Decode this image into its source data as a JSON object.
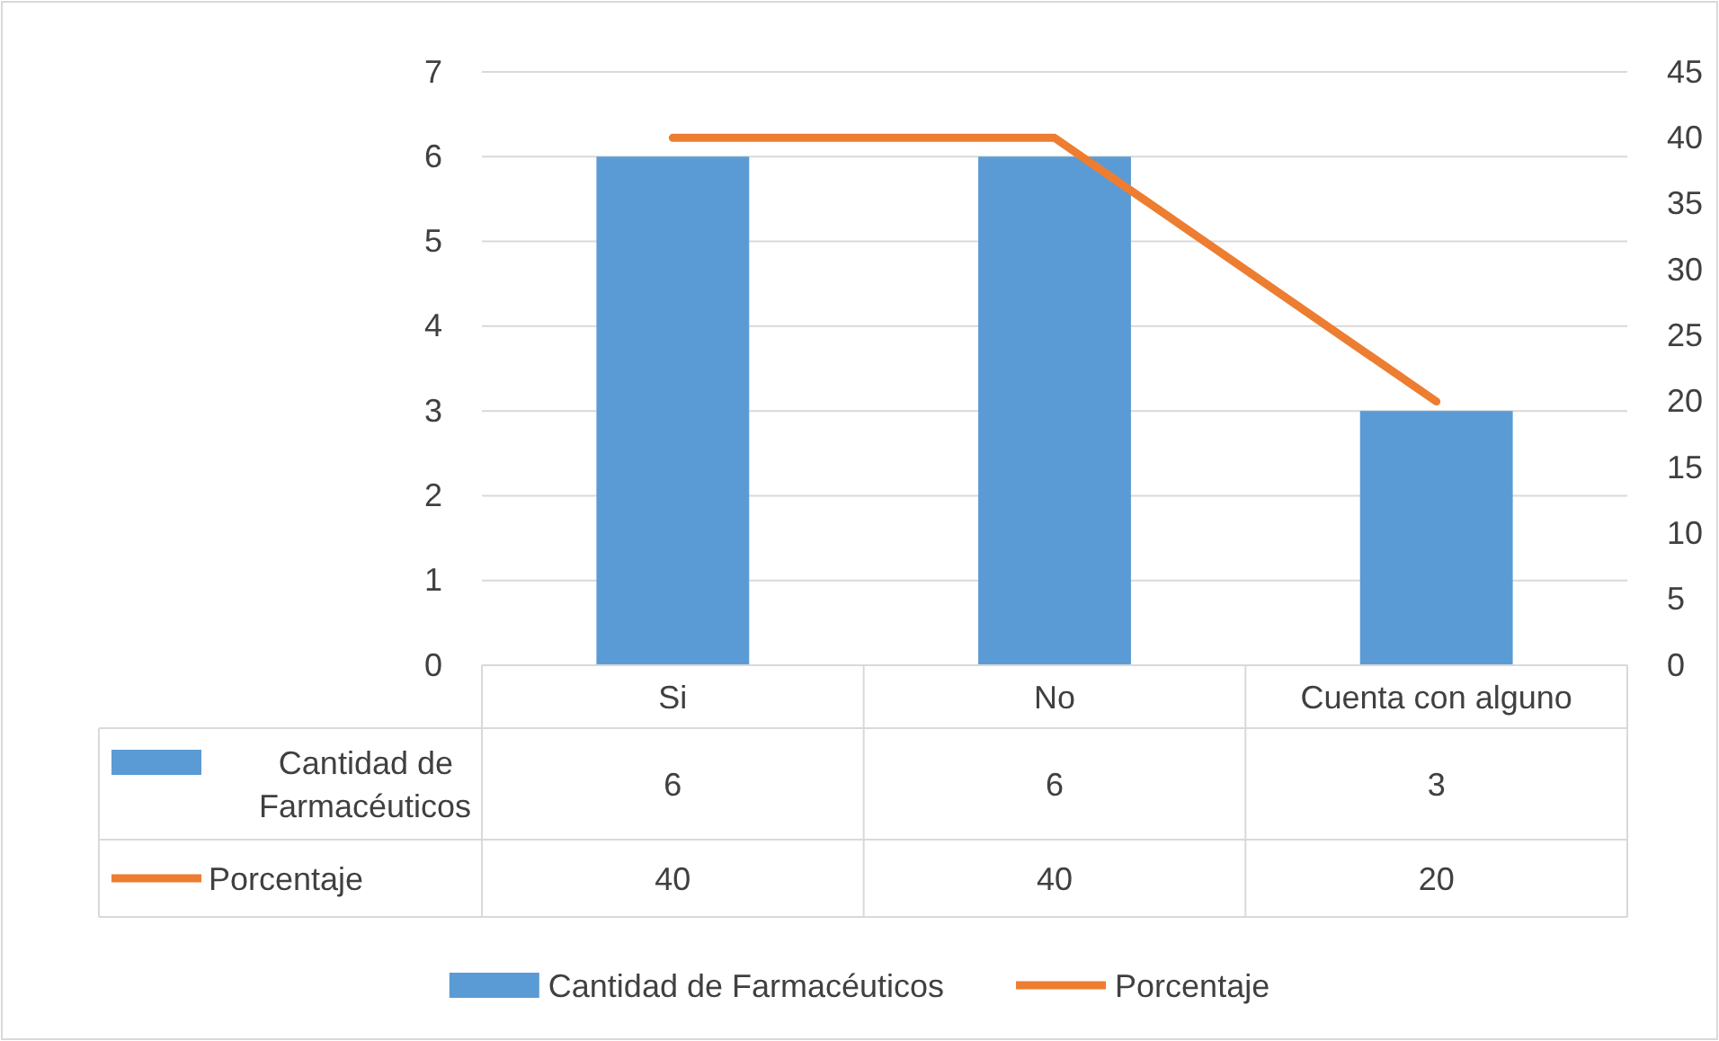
{
  "chart_data": {
    "type": "bar",
    "categories": [
      "Si",
      "No",
      "Cuenta con alguno"
    ],
    "series": [
      {
        "name": "Cantidad de Farmacéuticos",
        "color": "#5b9bd5",
        "values": [
          6,
          6,
          3
        ]
      },
      {
        "name": "Porcentaje",
        "type": "line",
        "axis": "y2",
        "color": "#ed7d31",
        "values": [
          40,
          40,
          20
        ]
      }
    ],
    "ylim": [
      0,
      7
    ],
    "yticks": [
      0,
      1,
      2,
      3,
      4,
      5,
      6,
      7
    ],
    "y2lim": [
      0,
      45
    ],
    "y2ticks": [
      0,
      5,
      10,
      15,
      20,
      25,
      30,
      35,
      40,
      45
    ],
    "grid": "y",
    "legend": "bottom",
    "data_labels": true,
    "marker": "none",
    "line_style": "solid"
  }
}
